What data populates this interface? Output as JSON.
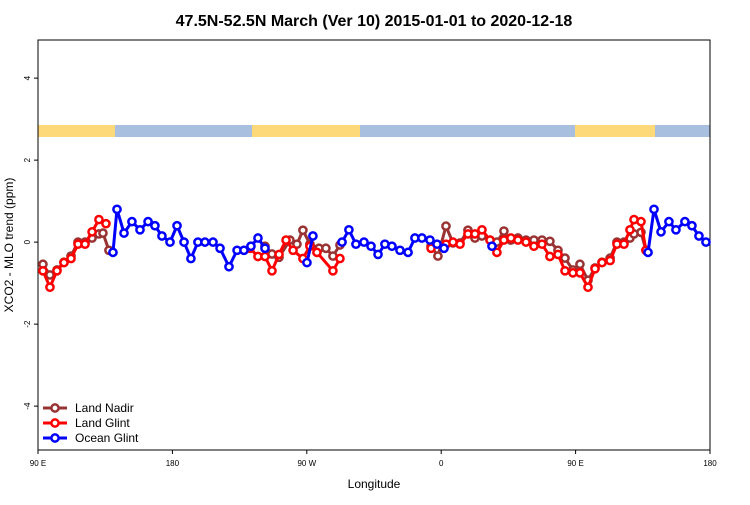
{
  "chart_data": {
    "type": "line",
    "title": "47.5N-52.5N March (Ver 10)   2015-01-01 to 2020-12-18",
    "x_label": "Longitude",
    "y_label": "XCO2 - MLO trend (ppm)",
    "xlim": [
      90,
      540
    ],
    "ylim": [
      -5.07,
      4.93
    ],
    "xticks": [
      {
        "value": 90,
        "label": "90 E"
      },
      {
        "value": 180,
        "label": "180"
      },
      {
        "value": 270,
        "label": "90 W"
      },
      {
        "value": 360,
        "label": "0"
      },
      {
        "value": 450,
        "label": "90 E"
      },
      {
        "value": 540,
        "label": "180"
      }
    ],
    "yticks": [
      -4,
      -2,
      0,
      2,
      4
    ],
    "legend": "bottom-left",
    "series": [
      {
        "name": "Land Nadir",
        "color": "#993333",
        "x": [
          93.3,
          98.0,
          102.7,
          107.4,
          112.1,
          116.8,
          121.5,
          126.2,
          130.8,
          133.5,
          137.5,
          190,
          242.0,
          246.7,
          251.4,
          258.7,
          263.4,
          267.4,
          272.1,
          278.2,
          282.8,
          287.5,
          292.2,
          320,
          353.2,
          357.8,
          363.2,
          367.9,
          372.6,
          377.9,
          382.6,
          387.3,
          392.7,
          397.3,
          402.0,
          406.7,
          411.4,
          416.8,
          422.1,
          427.5,
          432.8,
          438.2,
          442.9,
          448.2,
          452.9,
          458.3,
          463.0,
          467.7,
          473.1,
          477.7,
          482.4,
          486.4,
          489.1,
          493.8,
          497.1
        ],
        "values": [
          -0.54,
          -0.8,
          -0.68,
          -0.49,
          -0.34,
          0,
          0,
          0.1,
          0.2,
          0.22,
          -0.2,
          null,
          -0.1,
          -0.29,
          -0.37,
          0.05,
          -0.05,
          0.29,
          -0.05,
          -0.15,
          -0.15,
          -0.34,
          -0.07,
          null,
          -0.1,
          -0.34,
          0.39,
          -0.02,
          -0.02,
          0.29,
          0.1,
          0.15,
          0.05,
          0,
          0.27,
          0.05,
          0.1,
          0.05,
          0.05,
          0.05,
          0.02,
          -0.2,
          -0.39,
          -0.68,
          -0.54,
          -0.93,
          -0.63,
          -0.49,
          -0.39,
          0,
          0,
          0.1,
          0.2,
          0.24,
          -0.2
        ]
      },
      {
        "name": "Land Glint",
        "color": "#ff0000",
        "x": [
          93.3,
          98.0,
          102.7,
          107.4,
          112.1,
          116.8,
          121.5,
          126.2,
          130.8,
          135.5,
          185,
          232.0,
          237.3,
          242.0,
          246.7,
          251.4,
          256.1,
          260.8,
          267.4,
          272.1,
          276.8,
          287.5,
          292.2,
          320,
          353.2,
          363.2,
          367.9,
          372.6,
          377.9,
          382.6,
          387.3,
          392.7,
          397.3,
          402.0,
          406.7,
          411.4,
          416.8,
          422.1,
          427.5,
          432.8,
          438.2,
          442.9,
          448.2,
          452.9,
          458.3,
          463.0,
          467.7,
          473.1,
          477.7,
          482.4,
          486.4,
          489.1,
          493.8,
          497.1
        ],
        "values": [
          -0.7,
          -1.1,
          -0.7,
          -0.5,
          -0.4,
          -0.05,
          -0.05,
          0.25,
          0.55,
          0.45,
          null,
          -0.15,
          -0.35,
          -0.35,
          -0.7,
          -0.3,
          0.05,
          -0.2,
          -0.4,
          -0.1,
          -0.25,
          -0.7,
          -0.4,
          null,
          -0.15,
          -0.05,
          0,
          -0.05,
          0.2,
          0.2,
          0.3,
          0.05,
          -0.25,
          0.05,
          0.1,
          0.05,
          0,
          -0.1,
          -0.05,
          -0.35,
          -0.3,
          -0.7,
          -0.75,
          -0.75,
          -1.1,
          -0.65,
          -0.5,
          -0.45,
          -0.05,
          -0.05,
          0.3,
          0.55,
          0.5,
          -0.2
        ]
      },
      {
        "name": "Ocean Glint",
        "color": "#0000ff",
        "x": [
          140.2,
          142.9,
          147.6,
          152.9,
          158.3,
          163.7,
          168.3,
          173.0,
          178.4,
          183.1,
          187.8,
          192.4,
          197.1,
          201.8,
          207.2,
          211.9,
          217.9,
          223.3,
          227.9,
          232.6,
          237.3,
          242.0,
          256.1,
          270.1,
          274.1,
          284.2,
          293.6,
          298.2,
          302.9,
          308.3,
          313.0,
          317.7,
          322.3,
          327.0,
          332.4,
          337.8,
          342.4,
          347.1,
          352.5,
          357.2,
          361.9,
          379.3,
          394.0,
          446.2,
          498.5,
          502.5,
          507.2,
          512.5,
          517.2,
          523.2,
          527.9,
          532.6,
          537.3
        ],
        "values": [
          -0.25,
          0.8,
          0.22,
          0.5,
          0.3,
          0.5,
          0.4,
          0.15,
          0,
          0.4,
          0,
          -0.4,
          0,
          0,
          0,
          -0.15,
          -0.6,
          -0.2,
          -0.2,
          -0.1,
          0.1,
          -0.15,
          null,
          -0.5,
          0.15,
          null,
          0,
          0.3,
          -0.05,
          0,
          -0.1,
          -0.3,
          -0.05,
          -0.1,
          -0.2,
          -0.25,
          0.1,
          0.1,
          0.05,
          -0.05,
          -0.15,
          null,
          -0.1,
          null,
          -0.25,
          0.8,
          0.25,
          0.5,
          0.3,
          0.5,
          0.4,
          0.15,
          0
        ]
      }
    ]
  }
}
